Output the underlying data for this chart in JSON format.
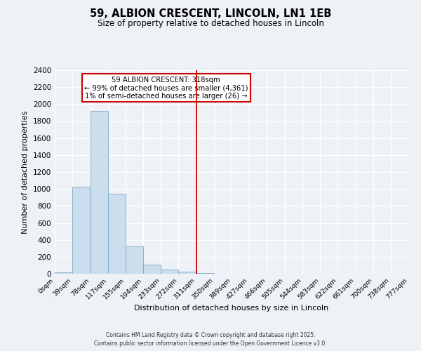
{
  "title": "59, ALBION CRESCENT, LINCOLN, LN1 1EB",
  "subtitle": "Size of property relative to detached houses in Lincoln",
  "xlabel": "Distribution of detached houses by size in Lincoln",
  "ylabel": "Number of detached properties",
  "bar_color": "#ccdded",
  "bar_edge_color": "#7aaac8",
  "bin_edges": [
    0,
    39,
    78,
    117,
    155,
    194,
    233,
    272,
    311,
    350,
    389,
    427,
    466,
    505,
    544,
    583,
    622,
    661,
    700,
    738,
    777
  ],
  "bin_labels": [
    "0sqm",
    "39sqm",
    "78sqm",
    "117sqm",
    "155sqm",
    "194sqm",
    "233sqm",
    "272sqm",
    "311sqm",
    "350sqm",
    "389sqm",
    "427sqm",
    "466sqm",
    "505sqm",
    "544sqm",
    "583sqm",
    "622sqm",
    "661sqm",
    "700sqm",
    "738sqm",
    "777sqm"
  ],
  "counts": [
    20,
    1030,
    1920,
    940,
    320,
    105,
    50,
    28,
    5,
    2,
    1,
    0,
    0,
    0,
    0,
    0,
    0,
    0,
    0,
    0
  ],
  "vline_x": 311,
  "vline_color": "#cc0000",
  "annotation_title": "59 ALBION CRESCENT: 318sqm",
  "annotation_line1": "← 99% of detached houses are smaller (4,361)",
  "annotation_line2": "1% of semi-detached houses are larger (26) →",
  "annotation_box_color": "#cc0000",
  "ylim": [
    0,
    2400
  ],
  "yticks": [
    0,
    200,
    400,
    600,
    800,
    1000,
    1200,
    1400,
    1600,
    1800,
    2000,
    2200,
    2400
  ],
  "bg_color": "#eef2f7",
  "grid_color": "#ffffff",
  "footer1": "Contains HM Land Registry data © Crown copyright and database right 2025.",
  "footer2": "Contains public sector information licensed under the Open Government Licence v3.0."
}
